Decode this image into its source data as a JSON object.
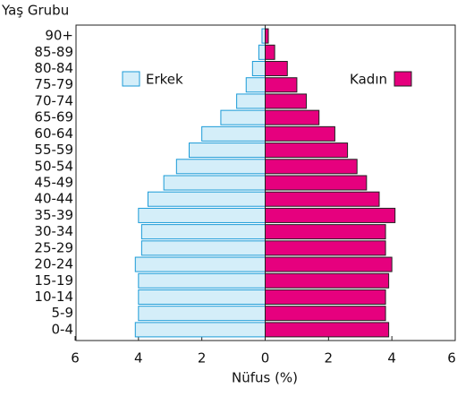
{
  "chart_data": {
    "type": "population_pyramid",
    "y_axis_title": "Yaş Grubu",
    "x_axis_title": "Nüfus (%)",
    "categories": [
      "0-4",
      "5-9",
      "10-14",
      "15-19",
      "20-24",
      "25-29",
      "30-34",
      "35-39",
      "40-44",
      "45-49",
      "50-54",
      "55-59",
      "60-64",
      "65-69",
      "70-74",
      "75-79",
      "80-84",
      "85-89",
      "90+"
    ],
    "series": [
      {
        "name": "Erkek",
        "color": "#d4eef9",
        "stroke": "#1b9bd7",
        "values": [
          -4.1,
          -4.0,
          -4.0,
          -4.0,
          -4.1,
          -3.9,
          -3.9,
          -4.0,
          -3.7,
          -3.2,
          -2.8,
          -2.4,
          -2.0,
          -1.4,
          -0.9,
          -0.6,
          -0.4,
          -0.2,
          -0.1
        ]
      },
      {
        "name": "Kadın",
        "color": "#e6007e",
        "stroke": "#222222",
        "values": [
          3.9,
          3.8,
          3.8,
          3.9,
          4.0,
          3.8,
          3.8,
          4.1,
          3.6,
          3.2,
          2.9,
          2.6,
          2.2,
          1.7,
          1.3,
          1.0,
          0.7,
          0.3,
          0.1
        ]
      }
    ],
    "xlim": [
      -6,
      6
    ],
    "xticks": [
      {
        "value": -6,
        "label": "6"
      },
      {
        "value": -4,
        "label": "4"
      },
      {
        "value": -2,
        "label": "2"
      },
      0,
      2,
      4,
      6
    ]
  }
}
